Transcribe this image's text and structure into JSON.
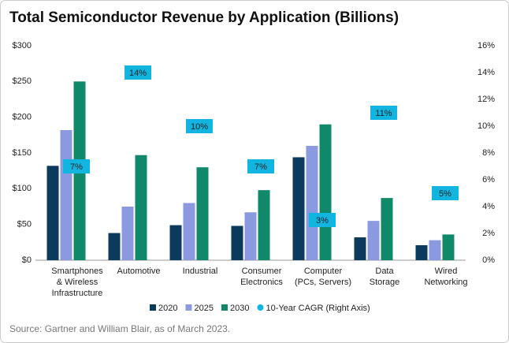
{
  "chart_data": {
    "type": "bar",
    "title": "Total Semiconductor Revenue by Application (Billions)",
    "source": "Source: Gartner and William Blair, as of March 2023.",
    "categories": [
      [
        "Smartphones",
        "& Wireless",
        "Infrastructure"
      ],
      [
        "Automotive"
      ],
      [
        "Industrial"
      ],
      [
        "Consumer",
        "Electronics"
      ],
      [
        "Computer",
        "(PCs, Servers)"
      ],
      [
        "Data",
        "Storage"
      ],
      [
        "Wired",
        "Networking"
      ]
    ],
    "series": [
      {
        "name": "2020",
        "color": "#0b3a5c",
        "values": [
          132,
          38,
          49,
          48,
          144,
          32,
          21
        ]
      },
      {
        "name": "2025",
        "color": "#8b9ae0",
        "values": [
          182,
          75,
          80,
          67,
          160,
          55,
          28
        ]
      },
      {
        "name": "2030",
        "color": "#10896a",
        "values": [
          250,
          147,
          130,
          98,
          190,
          87,
          36
        ]
      },
      {
        "name": "10-Year CAGR (Right Axis)",
        "color": "#12b5e0",
        "axis": "y2",
        "values": [
          7,
          14,
          10,
          7,
          3,
          11,
          5
        ],
        "value_labels": [
          "7%",
          "14%",
          "10%",
          "7%",
          "3%",
          "11%",
          "5%"
        ]
      }
    ],
    "ylim": [
      0,
      300
    ],
    "yticks": [
      {
        "value": 0,
        "label": "$0"
      },
      {
        "value": 50,
        "label": "$50"
      },
      {
        "value": 100,
        "label": "$100"
      },
      {
        "value": 150,
        "label": "$150"
      },
      {
        "value": 200,
        "label": "$200"
      },
      {
        "value": 250,
        "label": "$250"
      },
      {
        "value": 300,
        "label": "$300"
      }
    ],
    "y2lim": [
      0,
      16
    ],
    "y2ticks": [
      {
        "value": 0,
        "label": "0%"
      },
      {
        "value": 2,
        "label": "2%"
      },
      {
        "value": 4,
        "label": "4%"
      },
      {
        "value": 6,
        "label": "6%"
      },
      {
        "value": 8,
        "label": "8%"
      },
      {
        "value": 10,
        "label": "10%"
      },
      {
        "value": 12,
        "label": "12%"
      },
      {
        "value": 14,
        "label": "14%"
      },
      {
        "value": 16,
        "label": "16%"
      }
    ],
    "legend": "bottom"
  }
}
